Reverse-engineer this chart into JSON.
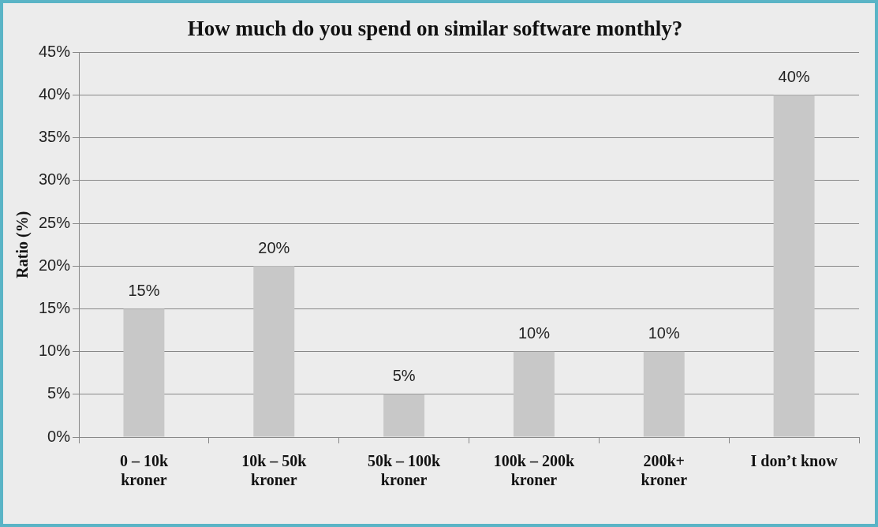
{
  "chart_data": {
    "type": "bar",
    "title": "How much do you spend on similar software monthly?",
    "ylabel": "Ratio (%)",
    "categories": [
      "0 – 10k\nkroner",
      "10k – 50k\nkroner",
      "50k – 100k\nkroner",
      "100k – 200k\nkroner",
      "200k+\nkroner",
      "I don’t know"
    ],
    "values": [
      15,
      20,
      5,
      10,
      10,
      40
    ],
    "color": "#c8c8c8",
    "value_labels": [
      "15%",
      "20%",
      "5%",
      "10%",
      "10%",
      "40%"
    ],
    "ylim": [
      0,
      45
    ],
    "yticks": [
      {
        "value": 0,
        "label": "0%"
      },
      {
        "value": 5,
        "label": "5%"
      },
      {
        "value": 10,
        "label": "10%"
      },
      {
        "value": 15,
        "label": "15%"
      },
      {
        "value": 20,
        "label": "20%"
      },
      {
        "value": 25,
        "label": "25%"
      },
      {
        "value": 30,
        "label": "30%"
      },
      {
        "value": 35,
        "label": "35%"
      },
      {
        "value": 40,
        "label": "40%"
      },
      {
        "value": 45,
        "label": "45%"
      }
    ],
    "grid": "y",
    "legend": false
  }
}
